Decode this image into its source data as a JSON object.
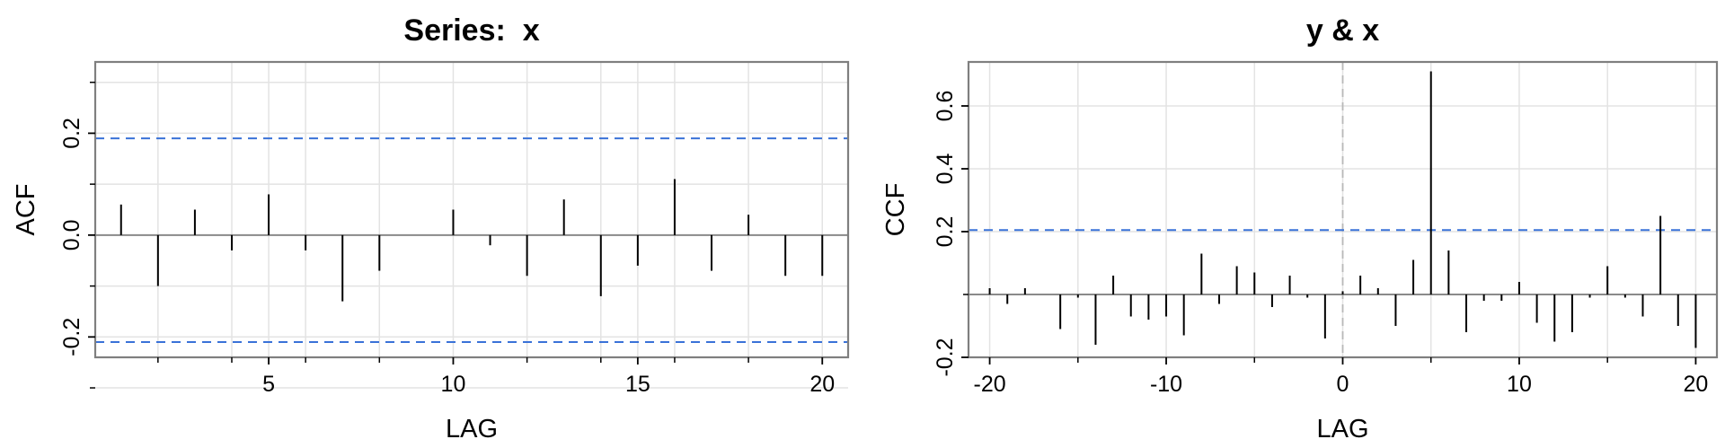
{
  "chart_data": [
    {
      "type": "bar",
      "title": "Series:  x",
      "xlabel": "LAG",
      "ylabel": "ACF",
      "xlim": [
        0.3,
        20.7
      ],
      "ylim": [
        -0.24,
        0.34
      ],
      "xticks": [
        5,
        10,
        15,
        20
      ],
      "xtick_labels": [
        "5",
        "10",
        "15",
        "20"
      ],
      "xminor": [
        2,
        4,
        6,
        8,
        12,
        14,
        16,
        18
      ],
      "yticks": [
        -0.2,
        0.0,
        0.2
      ],
      "ytick_labels": [
        "-0.2",
        "0.0",
        "0.2"
      ],
      "yminor": [
        -0.3,
        -0.1,
        0.1,
        0.3
      ],
      "grid": true,
      "zero_line": true,
      "bounds": {
        "upper": 0.19,
        "lower": -0.21
      },
      "x": [
        1,
        2,
        3,
        4,
        5,
        6,
        7,
        8,
        9,
        10,
        11,
        12,
        13,
        14,
        15,
        16,
        17,
        18,
        19,
        20
      ],
      "values": [
        0.06,
        -0.1,
        0.05,
        -0.03,
        0.08,
        -0.03,
        -0.13,
        -0.07,
        0.0,
        0.05,
        -0.02,
        -0.08,
        0.07,
        -0.12,
        -0.06,
        0.11,
        -0.07,
        0.04,
        -0.08,
        -0.08
      ],
      "colors": {
        "bar": "#000000",
        "bound": "#3a72d8",
        "grid": "#e3e3e3",
        "frame": "#7f7f7f"
      }
    },
    {
      "type": "bar",
      "title": "y & x",
      "xlabel": "LAG",
      "ylabel": "CCF",
      "xlim": [
        -21.2,
        21.2
      ],
      "ylim": [
        -0.2,
        0.74
      ],
      "xticks": [
        -20,
        -10,
        0,
        10,
        20
      ],
      "xtick_labels": [
        "-20",
        "-10",
        "0",
        "10",
        "20"
      ],
      "xminor": [
        -15,
        -5,
        5,
        15
      ],
      "yticks": [
        -0.2,
        0.2,
        0.4,
        0.6
      ],
      "ytick_labels": [
        "-0.2",
        "0.2",
        "0.4",
        "0.6"
      ],
      "yminor": [
        0.0
      ],
      "grid": true,
      "zero_line": true,
      "vline": 0,
      "bounds": {
        "upper": 0.205
      },
      "x": [
        -20,
        -19,
        -18,
        -17,
        -16,
        -15,
        -14,
        -13,
        -12,
        -11,
        -10,
        -9,
        -8,
        -7,
        -6,
        -5,
        -4,
        -3,
        -2,
        -1,
        0,
        1,
        2,
        3,
        4,
        5,
        6,
        7,
        8,
        9,
        10,
        11,
        12,
        13,
        14,
        15,
        16,
        17,
        18,
        19,
        20
      ],
      "values": [
        0.02,
        -0.03,
        0.02,
        0.0,
        -0.11,
        -0.01,
        -0.16,
        0.06,
        -0.07,
        -0.08,
        -0.07,
        -0.13,
        0.13,
        -0.03,
        0.09,
        0.07,
        -0.04,
        0.06,
        -0.01,
        -0.14,
        0.01,
        0.06,
        0.02,
        -0.1,
        0.11,
        0.71,
        0.14,
        -0.12,
        -0.02,
        -0.02,
        0.04,
        -0.09,
        -0.15,
        -0.12,
        -0.01,
        0.09,
        -0.01,
        -0.07,
        0.25,
        -0.1,
        -0.17
      ],
      "colors": {
        "bar": "#000000",
        "bound": "#3a72d8",
        "grid": "#e3e3e3",
        "frame": "#7f7f7f",
        "vline": "#b8b8b8"
      }
    }
  ]
}
